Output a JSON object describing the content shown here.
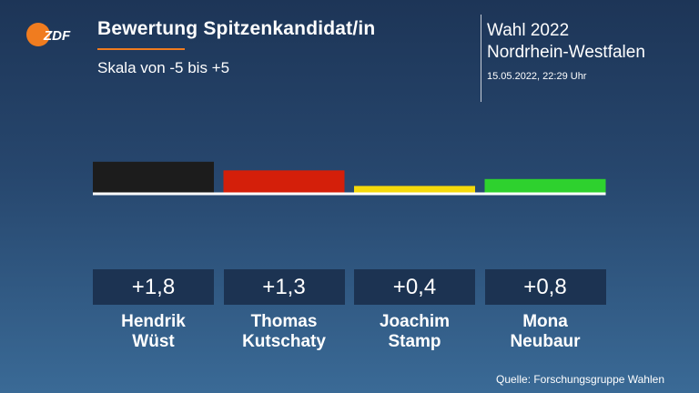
{
  "header": {
    "logo_text": "ZDF",
    "title": "Bewertung Spitzenkandidat/in",
    "subtitle": "Skala von -5 bis +5",
    "election_line1": "Wahl 2022",
    "election_line2": "Nordrhein-Westfalen",
    "timestamp": "15.05.2022, 22:29 Uhr"
  },
  "colors": {
    "accent": "#f07c1f",
    "box": "#1c3352"
  },
  "chart_data": {
    "type": "bar",
    "title": "Bewertung Spitzenkandidat/in",
    "subtitle": "Skala von -5 bis +5",
    "ylim": [
      -5,
      5
    ],
    "categories": [
      "Hendrik\nWüst",
      "Thomas\nKutschaty",
      "Joachim\nStamp",
      "Mona\nNeubaur"
    ],
    "values": [
      1.8,
      1.3,
      0.4,
      0.8
    ],
    "value_labels": [
      "+1,8",
      "+1,3",
      "+0,4",
      "+0,8"
    ],
    "bar_colors": [
      "#1c1c1c",
      "#d41f0a",
      "#f5d90a",
      "#2ed12e"
    ]
  },
  "footer": {
    "source": "Quelle: Forschungsgruppe Wahlen"
  }
}
